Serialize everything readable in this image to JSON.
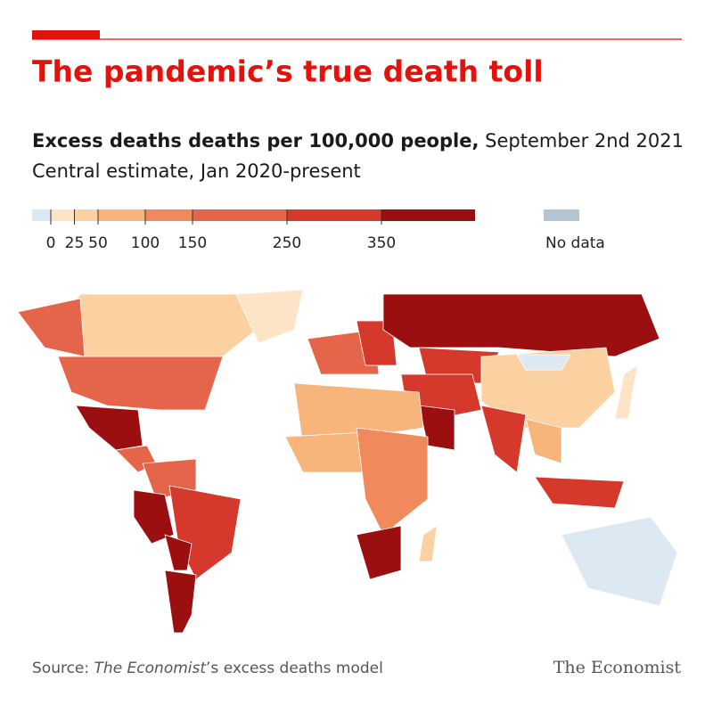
{
  "header": {
    "title": "The pandemic’s true death toll",
    "subtitle_bold": "Excess deaths deaths per 100,000 people,",
    "subtitle_date": "September 2nd 2021",
    "description": "Central estimate, Jan 2020-present"
  },
  "legend": {
    "ticks": [
      0,
      25,
      50,
      100,
      150,
      250,
      350
    ],
    "colors": [
      "#dce9f2",
      "#fde4c6",
      "#fbd1a2",
      "#f7b57c",
      "#f08a5c",
      "#e5654a",
      "#d4392c",
      "#9c0f10"
    ],
    "no_data_label": "No data",
    "no_data_color": "#b4c4d0"
  },
  "map_values": [
    40,
    200,
    200,
    20,
    400,
    200,
    200,
    400,
    280,
    400,
    360,
    150,
    300,
    380,
    250,
    40,
    -10,
    300,
    380,
    280,
    60,
    300,
    80,
    60,
    100,
    380,
    40,
    -10,
    20
  ],
  "footer": {
    "source_prefix": "Source: ",
    "source_italic": "The Economist",
    "source_suffix": "’s excess deaths model",
    "brand": "The Economist"
  }
}
